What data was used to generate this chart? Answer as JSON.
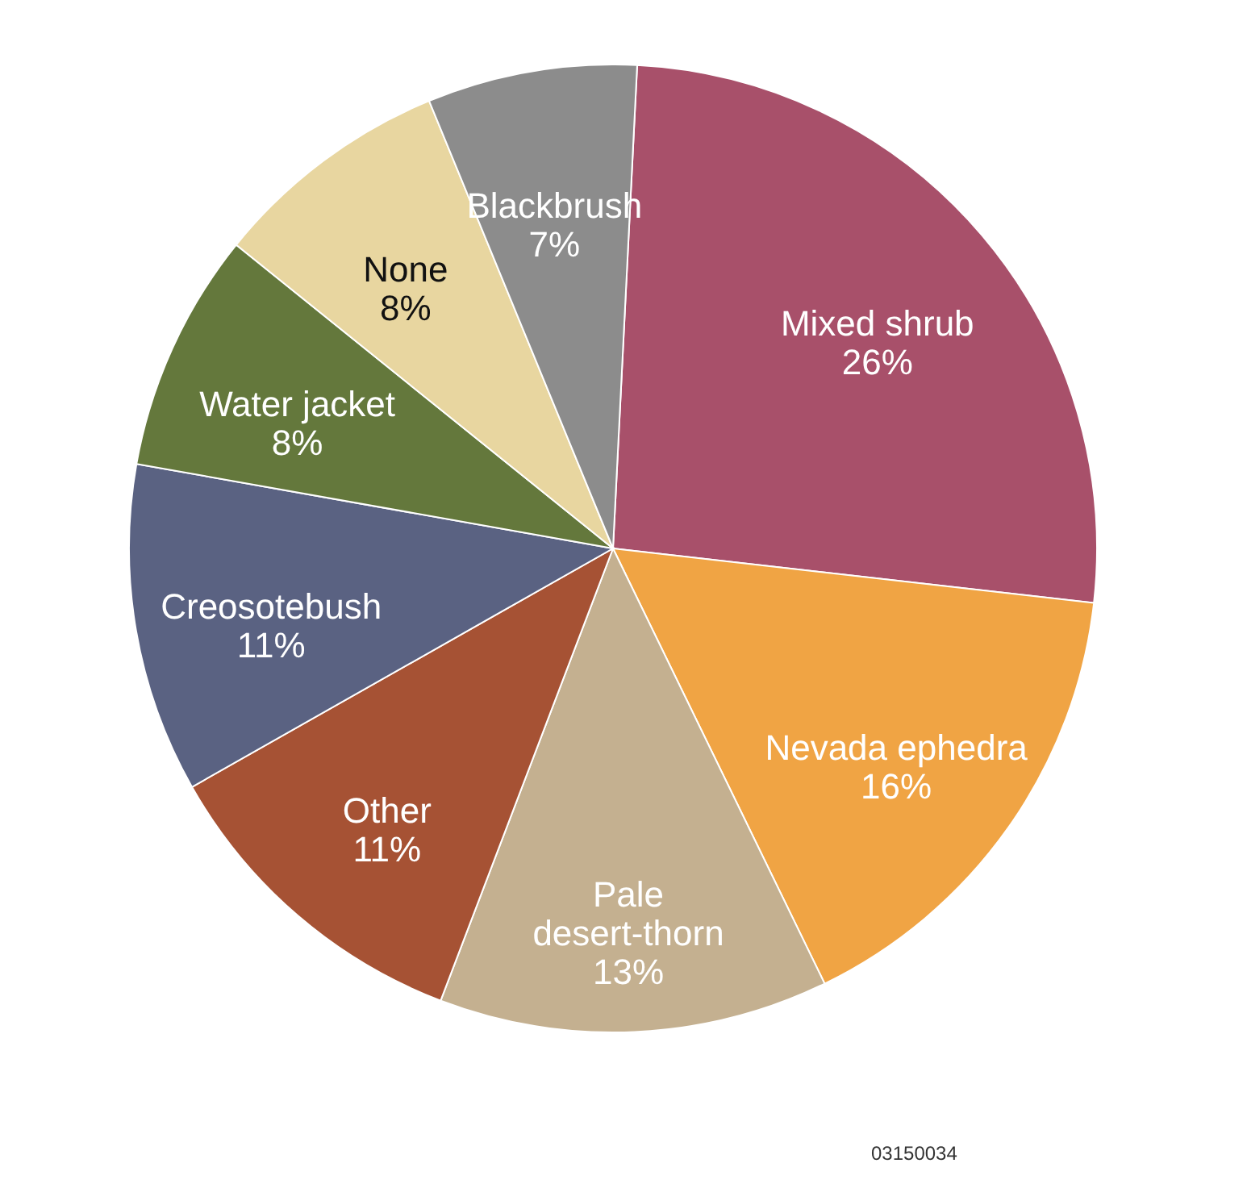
{
  "chart_data": {
    "type": "pie",
    "categories": [
      "Mixed shrub",
      "Nevada ephedra",
      "Pale desert-thorn",
      "Other",
      "Creosotebush",
      "Water jacket",
      "None",
      "Blackbrush"
    ],
    "values": [
      26,
      16,
      13,
      11,
      11,
      8,
      8,
      7
    ],
    "value_labels": [
      "26%",
      "16%",
      "13%",
      "11%",
      "11%",
      "8%",
      "8%",
      "7%"
    ],
    "colors": [
      "#a8506a",
      "#f0a444",
      "#c4b090",
      "#a65234",
      "#5a6282",
      "#64783c",
      "#e8d6a0",
      "#8c8c8c"
    ],
    "annotations": [
      "03150034"
    ]
  }
}
